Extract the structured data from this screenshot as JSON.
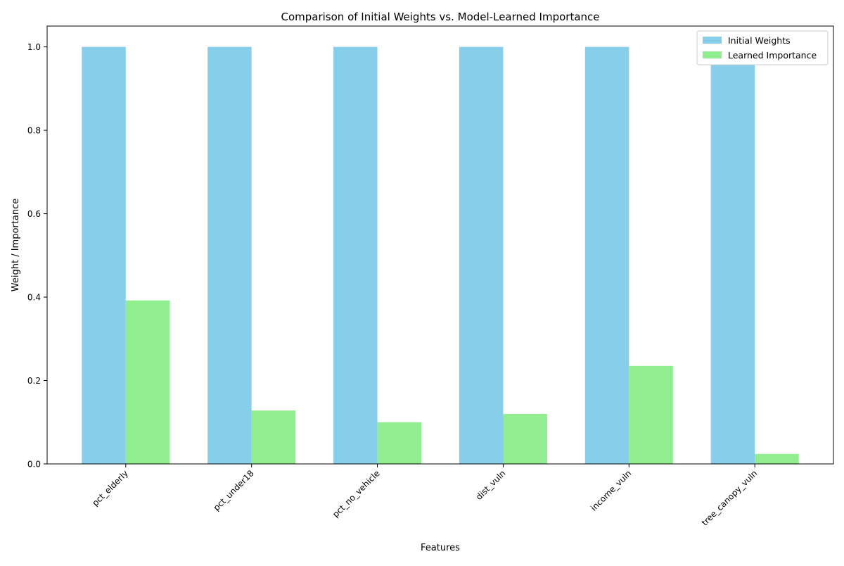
{
  "chart_data": {
    "type": "bar",
    "title": "Comparison of Initial Weights vs. Model-Learned Importance",
    "xlabel": "Features",
    "ylabel": "Weight / Importance",
    "categories": [
      "pct_elderly",
      "pct_under18",
      "pct_no_vehicle",
      "dist_vuln",
      "income_vuln",
      "tree_canopy_vuln"
    ],
    "series": [
      {
        "name": "Initial Weights",
        "color": "#87CEEB",
        "values": [
          1.0,
          1.0,
          1.0,
          1.0,
          1.0,
          1.0
        ]
      },
      {
        "name": "Learned Importance",
        "color": "#90EE90",
        "values": [
          0.392,
          0.128,
          0.1,
          0.12,
          0.235,
          0.024
        ]
      }
    ],
    "ylim": [
      0,
      1.05
    ],
    "yticks": [
      0.0,
      0.2,
      0.4,
      0.6,
      0.8,
      1.0
    ],
    "ytick_labels": [
      "0.0",
      "0.2",
      "0.4",
      "0.6",
      "0.8",
      "1.0"
    ],
    "grid": false,
    "legend_position": "top-right",
    "xtick_rotation": 45
  }
}
